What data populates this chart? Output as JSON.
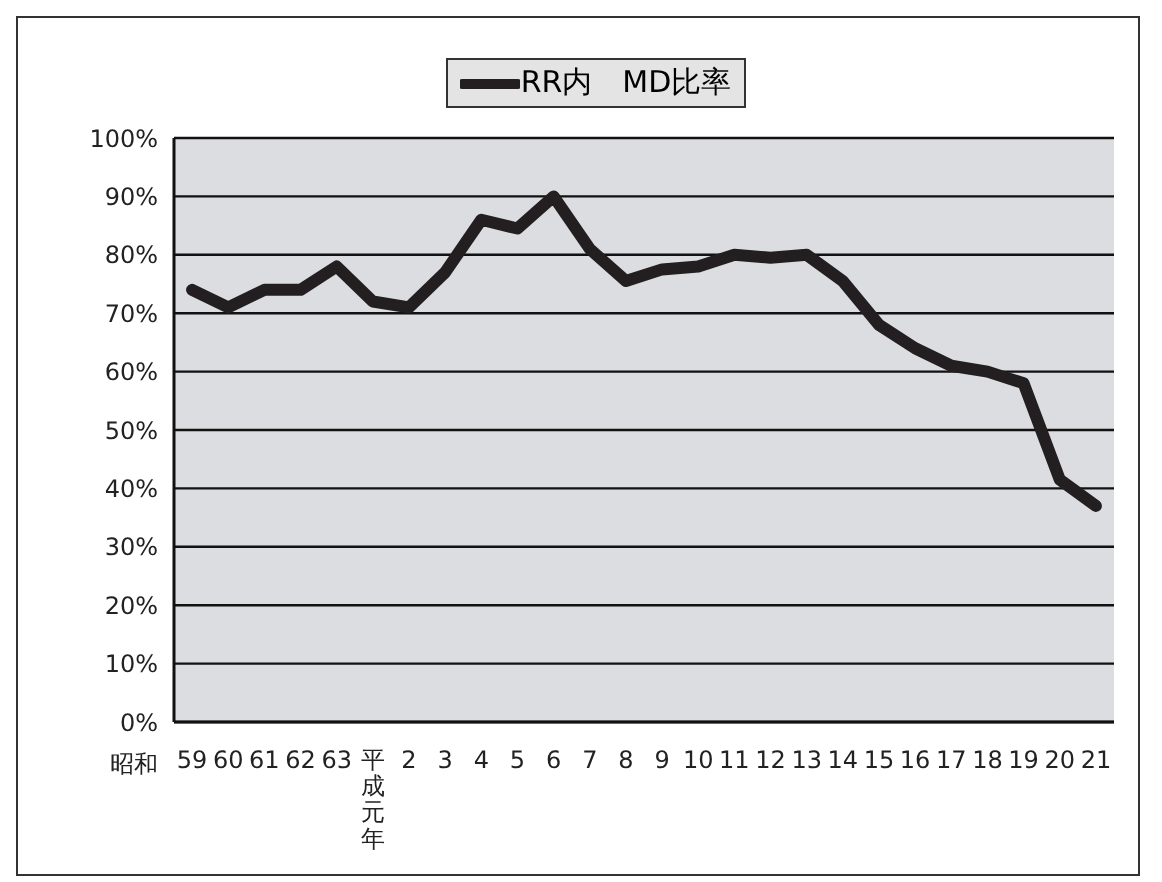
{
  "chart_data": {
    "type": "line",
    "categories": [
      "59",
      "60",
      "61",
      "62",
      "63",
      "平成元年",
      "2",
      "3",
      "4",
      "5",
      "6",
      "7",
      "8",
      "9",
      "10",
      "11",
      "12",
      "13",
      "14",
      "15",
      "16",
      "17",
      "18",
      "19",
      "20",
      "21"
    ],
    "annotations": [
      "昭和"
    ],
    "series": [
      {
        "name": "RR内　MD比率",
        "color": "#231f20",
        "values": [
          74,
          71,
          74,
          74,
          78,
          72,
          71,
          77,
          86,
          84.5,
          90,
          81,
          75.5,
          77.5,
          78,
          80,
          79.5,
          80,
          75.5,
          68,
          64,
          61,
          60,
          58,
          41.5,
          37
        ]
      }
    ],
    "ylim": [
      0,
      100
    ],
    "yticks": [
      {
        "value": 0,
        "label": "0%"
      },
      {
        "value": 10,
        "label": "10%"
      },
      {
        "value": 20,
        "label": "20%"
      },
      {
        "value": 30,
        "label": "30%"
      },
      {
        "value": 40,
        "label": "40%"
      },
      {
        "value": 50,
        "label": "50%"
      },
      {
        "value": 60,
        "label": "60%"
      },
      {
        "value": 70,
        "label": "70%"
      },
      {
        "value": 80,
        "label": "80%"
      },
      {
        "value": 90,
        "label": "90%"
      },
      {
        "value": 100,
        "label": "100%"
      }
    ],
    "grid": "y",
    "legend": "top",
    "marker": "none",
    "line_style": "solid"
  }
}
